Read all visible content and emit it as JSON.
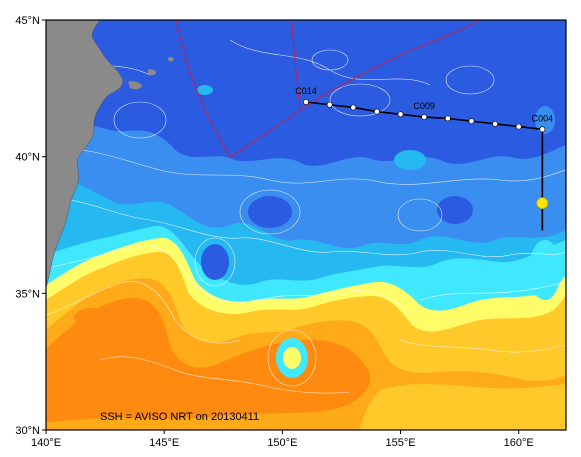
{
  "map": {
    "lon_range": [
      140,
      162
    ],
    "lat_range": [
      30,
      45
    ],
    "lat_ticks": [
      {
        "value": 45,
        "label": "45°N"
      },
      {
        "value": 40,
        "label": "40°N"
      },
      {
        "value": 35,
        "label": "35°N"
      },
      {
        "value": 30,
        "label": "30°N"
      }
    ],
    "lon_ticks": [
      {
        "value": 140,
        "label": "140°E"
      },
      {
        "value": 145,
        "label": "145°E"
      },
      {
        "value": 150,
        "label": "150°E"
      },
      {
        "value": 155,
        "label": "155°E"
      },
      {
        "value": 160,
        "label": "160°E"
      }
    ],
    "caption": "SSH = AVISO NRT on 20130411",
    "colors": {
      "deep_blue": "#2a5be0",
      "mid_blue": "#3a8ef0",
      "sky_blue": "#26b8f0",
      "cyan": "#3fe8ff",
      "light_yellow": "#fffc6a",
      "yellow": "#ffc92a",
      "light_orange": "#ffaa18",
      "orange": "#ff8a10",
      "land": "#8a8a8a",
      "boundary": "#c02050",
      "track": "#000000",
      "station": "#ffffff",
      "marker": "#ffe600"
    },
    "stations": [
      {
        "label": "C014",
        "lon": 151.0,
        "lat": 42.0
      },
      {
        "lon": 152.0,
        "lat": 41.9
      },
      {
        "lon": 153.0,
        "lat": 41.8
      },
      {
        "lon": 154.0,
        "lat": 41.65
      },
      {
        "lon": 155.0,
        "lat": 41.55
      },
      {
        "label": "C009",
        "lon": 156.0,
        "lat": 41.45
      },
      {
        "lon": 157.0,
        "lat": 41.4
      },
      {
        "lon": 158.0,
        "lat": 41.3
      },
      {
        "lon": 159.0,
        "lat": 41.2
      },
      {
        "lon": 160.0,
        "lat": 41.1
      },
      {
        "label": "C004",
        "lon": 161.0,
        "lat": 41.0
      }
    ],
    "track_tail": [
      {
        "lon": 161.0,
        "lat": 41.0
      },
      {
        "lon": 161.0,
        "lat": 37.3
      }
    ],
    "marker": {
      "lon": 161.0,
      "lat": 38.3
    }
  }
}
